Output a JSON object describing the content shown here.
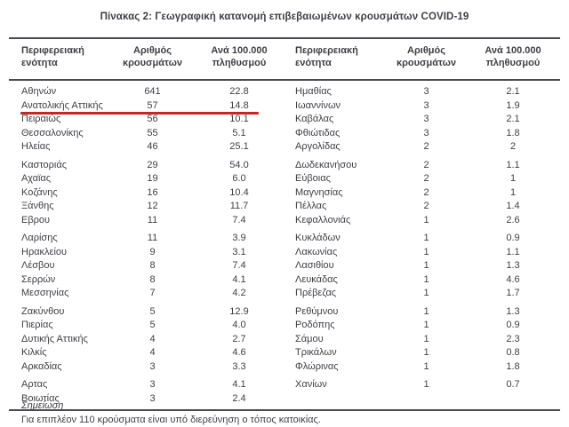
{
  "title": "Πίνακας 2: Γεωγραφική κατανομή επιβεβαιωμένων κρουσμάτων COVID-19",
  "colors": {
    "highlight_underline": "#c32727",
    "text": "#3f3f46",
    "rule": "#4a4a52"
  },
  "headers": {
    "region": "Περιφερειακή ενότητα",
    "cases": "Αριθμός\nκρουσμάτων",
    "rate": "Ανά 100.000\nπληθυσμού"
  },
  "table": {
    "left_groups": [
      [
        {
          "region": "Αθηνών",
          "cases": "641",
          "rate": "22.8"
        },
        {
          "region": "Ανατολικής Αττικής",
          "cases": "57",
          "rate": "14.8",
          "highlight": true
        },
        {
          "region": "Πειραιώς",
          "cases": "56",
          "rate": "10.1"
        },
        {
          "region": "Θεσσαλονίκης",
          "cases": "55",
          "rate": "5.1"
        },
        {
          "region": "Ηλείας",
          "cases": "46",
          "rate": "25.1"
        }
      ],
      [
        {
          "region": "Καστοριάς",
          "cases": "29",
          "rate": "54.0"
        },
        {
          "region": "Αχαϊας",
          "cases": "19",
          "rate": "6.0"
        },
        {
          "region": "Κοζάνης",
          "cases": "16",
          "rate": "10.4"
        },
        {
          "region": "Ξάνθης",
          "cases": "12",
          "rate": "11.7"
        },
        {
          "region": "Εβρου",
          "cases": "11",
          "rate": "7.4"
        }
      ],
      [
        {
          "region": "Λαρίσης",
          "cases": "11",
          "rate": "3.9"
        },
        {
          "region": "Ηρακλείου",
          "cases": "9",
          "rate": "3.1"
        },
        {
          "region": "Λέσβου",
          "cases": "8",
          "rate": "7.4"
        },
        {
          "region": "Σερρών",
          "cases": "8",
          "rate": "4.1"
        },
        {
          "region": "Μεσσηνίας",
          "cases": "7",
          "rate": "4.2"
        }
      ],
      [
        {
          "region": "Ζακύνθου",
          "cases": "5",
          "rate": "12.9"
        },
        {
          "region": "Πιερίας",
          "cases": "5",
          "rate": "4.0"
        },
        {
          "region": "Δυτικής Αττικής",
          "cases": "4",
          "rate": "2.7"
        },
        {
          "region": "Κιλκίς",
          "cases": "4",
          "rate": "4.6"
        },
        {
          "region": "Αρκαδίας",
          "cases": "3",
          "rate": "3.3"
        }
      ],
      [
        {
          "region": "Αρτας",
          "cases": "3",
          "rate": "4.1"
        },
        {
          "region": "Βοιωτίας",
          "cases": "3",
          "rate": "2.4"
        }
      ]
    ],
    "right_groups": [
      [
        {
          "region": "Ημαθίας",
          "cases": "3",
          "rate": "2.1"
        },
        {
          "region": "Ιωαννίνων",
          "cases": "3",
          "rate": "1.9"
        },
        {
          "region": "Καβάλας",
          "cases": "3",
          "rate": "2.1"
        },
        {
          "region": "Φθιώτιδας",
          "cases": "3",
          "rate": "1.8"
        },
        {
          "region": "Αργολίδας",
          "cases": "2",
          "rate": "2"
        }
      ],
      [
        {
          "region": "Δωδεκανήσου",
          "cases": "2",
          "rate": "1.1"
        },
        {
          "region": "Εύβοιας",
          "cases": "2",
          "rate": "1"
        },
        {
          "region": "Μαγνησίας",
          "cases": "2",
          "rate": "1"
        },
        {
          "region": "Πέλλας",
          "cases": "2",
          "rate": "1.4"
        },
        {
          "region": "Κεφαλλονιάς",
          "cases": "1",
          "rate": "2.6"
        }
      ],
      [
        {
          "region": "Κυκλάδων",
          "cases": "1",
          "rate": "0.9"
        },
        {
          "region": "Λακωνίας",
          "cases": "1",
          "rate": "1.1"
        },
        {
          "region": "Λασιθίου",
          "cases": "1",
          "rate": "1.3"
        },
        {
          "region": "Λευκάδας",
          "cases": "1",
          "rate": "4.6"
        },
        {
          "region": "Πρέβεζας",
          "cases": "1",
          "rate": "1.7"
        }
      ],
      [
        {
          "region": "Ρεθύμνου",
          "cases": "1",
          "rate": "1.3"
        },
        {
          "region": "Ροδόπης",
          "cases": "1",
          "rate": "0.9"
        },
        {
          "region": "Σάμου",
          "cases": "1",
          "rate": "2.3"
        },
        {
          "region": "Τρικάλων",
          "cases": "1",
          "rate": "0.8"
        },
        {
          "region": "Φλώρινας",
          "cases": "1",
          "rate": "1.8"
        }
      ],
      [
        {
          "region": "Χανίων",
          "cases": "1",
          "rate": "0.7"
        }
      ]
    ]
  },
  "notes": {
    "label": "Σημείωση",
    "text": "Για επιπλέον 110 κρούσματα είναι υπό διερεύνηση ο τόπος κατοικίας."
  }
}
